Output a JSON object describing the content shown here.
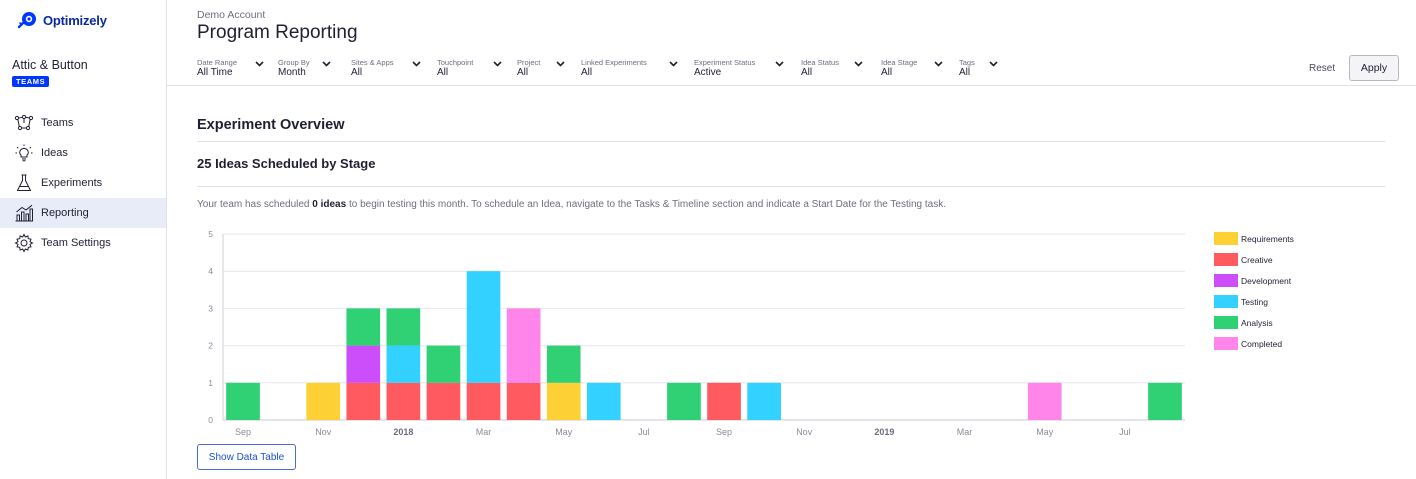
{
  "brand": {
    "name": "Optimizely"
  },
  "sidebar": {
    "account_name": "Attic & Button",
    "badge": "TEAMS",
    "items": [
      {
        "label": "Teams",
        "icon": "teams-icon",
        "active": false
      },
      {
        "label": "Ideas",
        "icon": "lightbulb-icon",
        "active": false
      },
      {
        "label": "Experiments",
        "icon": "flask-icon",
        "active": false
      },
      {
        "label": "Reporting",
        "icon": "chart-icon",
        "active": true
      },
      {
        "label": "Team Settings",
        "icon": "gear-icon",
        "active": false
      }
    ]
  },
  "header": {
    "account_label": "Demo Account",
    "title": "Program Reporting"
  },
  "filters": [
    {
      "label": "Date Range",
      "value": "All Time"
    },
    {
      "label": "Group By",
      "value": "Month"
    },
    {
      "label": "Sites & Apps",
      "value": "All"
    },
    {
      "label": "Touchpoint",
      "value": "All"
    },
    {
      "label": "Project",
      "value": "All"
    },
    {
      "label": "Linked Experiments",
      "value": "All"
    },
    {
      "label": "Experiment Status",
      "value": "Active"
    },
    {
      "label": "Idea Status",
      "value": "All"
    },
    {
      "label": "Idea Stage",
      "value": "All"
    },
    {
      "label": "Tags",
      "value": "All"
    }
  ],
  "actions": {
    "reset": "Reset",
    "apply": "Apply",
    "show_table": "Show Data Table"
  },
  "content": {
    "section_title": "Experiment Overview",
    "subsection_title": "25 Ideas Scheduled by Stage",
    "description_before": "Your team has scheduled ",
    "description_bold": "0 ideas",
    "description_after": " to begin testing this month. To schedule an Idea, navigate to the Tasks & Timeline section and indicate a Start Date for the Testing task."
  },
  "colors": {
    "Requirements": "#fdd135",
    "Creative": "#ff5a5f",
    "Development": "#cc4dfa",
    "Testing": "#33d1ff",
    "Analysis": "#30d074",
    "Completed": "#ff85ea"
  },
  "chart_data": {
    "type": "bar",
    "stacked": true,
    "ylim": [
      0,
      5
    ],
    "yticks": [
      "0",
      "1",
      "2",
      "3",
      "4",
      "5"
    ],
    "grid": true,
    "legend_position": "right",
    "categories": [
      "2017-09",
      "2017-10",
      "2017-11",
      "2017-12",
      "2018-01",
      "2018-02",
      "2018-03",
      "2018-04",
      "2018-05",
      "2018-06",
      "2018-07",
      "2018-08",
      "2018-09",
      "2018-10",
      "2018-11",
      "2018-12",
      "2019-01",
      "2019-02",
      "2019-03",
      "2019-04",
      "2019-05",
      "2019-06",
      "2019-07",
      "2019-08"
    ],
    "x_tick_labels": [
      {
        "label": "Sep",
        "index": 0,
        "bold": false
      },
      {
        "label": "Nov",
        "index": 2,
        "bold": false
      },
      {
        "label": "2018",
        "index": 4,
        "bold": true
      },
      {
        "label": "Mar",
        "index": 6,
        "bold": false
      },
      {
        "label": "May",
        "index": 8,
        "bold": false
      },
      {
        "label": "Jul",
        "index": 10,
        "bold": false
      },
      {
        "label": "Sep",
        "index": 12,
        "bold": false
      },
      {
        "label": "Nov",
        "index": 14,
        "bold": false
      },
      {
        "label": "2019",
        "index": 16,
        "bold": true
      },
      {
        "label": "Mar",
        "index": 18,
        "bold": false
      },
      {
        "label": "May",
        "index": 20,
        "bold": false
      },
      {
        "label": "Jul",
        "index": 22,
        "bold": false
      }
    ],
    "series": [
      {
        "name": "Requirements",
        "values": [
          0,
          0,
          1,
          0,
          0,
          0,
          0,
          0,
          1,
          0,
          0,
          0,
          0,
          0,
          0,
          0,
          0,
          0,
          0,
          0,
          0,
          0,
          0,
          0
        ]
      },
      {
        "name": "Creative",
        "values": [
          0,
          0,
          0,
          1,
          1,
          1,
          1,
          1,
          0,
          0,
          0,
          0,
          1,
          0,
          0,
          0,
          0,
          0,
          0,
          0,
          0,
          0,
          0,
          0
        ]
      },
      {
        "name": "Development",
        "values": [
          0,
          0,
          0,
          1,
          0,
          0,
          0,
          0,
          0,
          0,
          0,
          0,
          0,
          0,
          0,
          0,
          0,
          0,
          0,
          0,
          0,
          0,
          0,
          0
        ]
      },
      {
        "name": "Testing",
        "values": [
          0,
          0,
          0,
          0,
          1,
          0,
          3,
          0,
          0,
          1,
          0,
          0,
          0,
          1,
          0,
          0,
          0,
          0,
          0,
          0,
          0,
          0,
          0,
          0
        ]
      },
      {
        "name": "Analysis",
        "values": [
          1,
          0,
          0,
          1,
          1,
          1,
          0,
          0,
          1,
          0,
          0,
          1,
          0,
          0,
          0,
          0,
          0,
          0,
          0,
          0,
          0,
          0,
          0,
          1
        ]
      },
      {
        "name": "Completed",
        "values": [
          0,
          0,
          0,
          0,
          0,
          0,
          0,
          2,
          0,
          0,
          0,
          0,
          0,
          0,
          0,
          0,
          0,
          0,
          0,
          0,
          1,
          0,
          0,
          0
        ]
      }
    ]
  }
}
